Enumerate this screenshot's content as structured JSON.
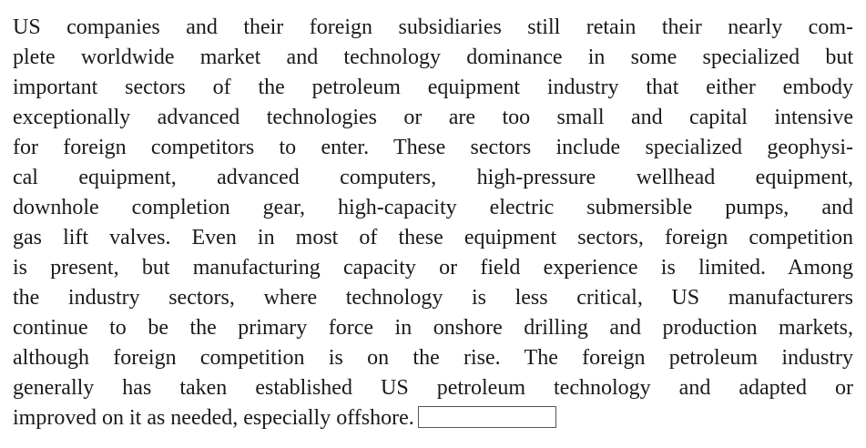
{
  "paragraph": {
    "lines": [
      "US companies and their foreign subsidiaries still retain their nearly com-",
      "plete worldwide market and technology dominance in some specialized but",
      "important sectors of the petroleum equipment industry that either embody",
      "exceptionally advanced technologies or are too small and capital intensive",
      "for foreign competitors to enter. These sectors include specialized geophysi-",
      "cal equipment, advanced computers, high-pressure wellhead equipment,",
      "downhole completion gear, high-capacity electric submersible pumps, and",
      "gas lift valves. Even in most of these equipment sectors, foreign competition",
      "is present, but manufacturing capacity or field experience is limited. Among",
      "the industry sectors, where technology is less critical, US manufacturers",
      "continue to be the primary force in onshore drilling and production markets,",
      "although foreign competition is on the rise. The foreign petroleum industry",
      "generally has taken established US petroleum technology and adapted or",
      "improved on it as needed, especially offshore."
    ]
  }
}
